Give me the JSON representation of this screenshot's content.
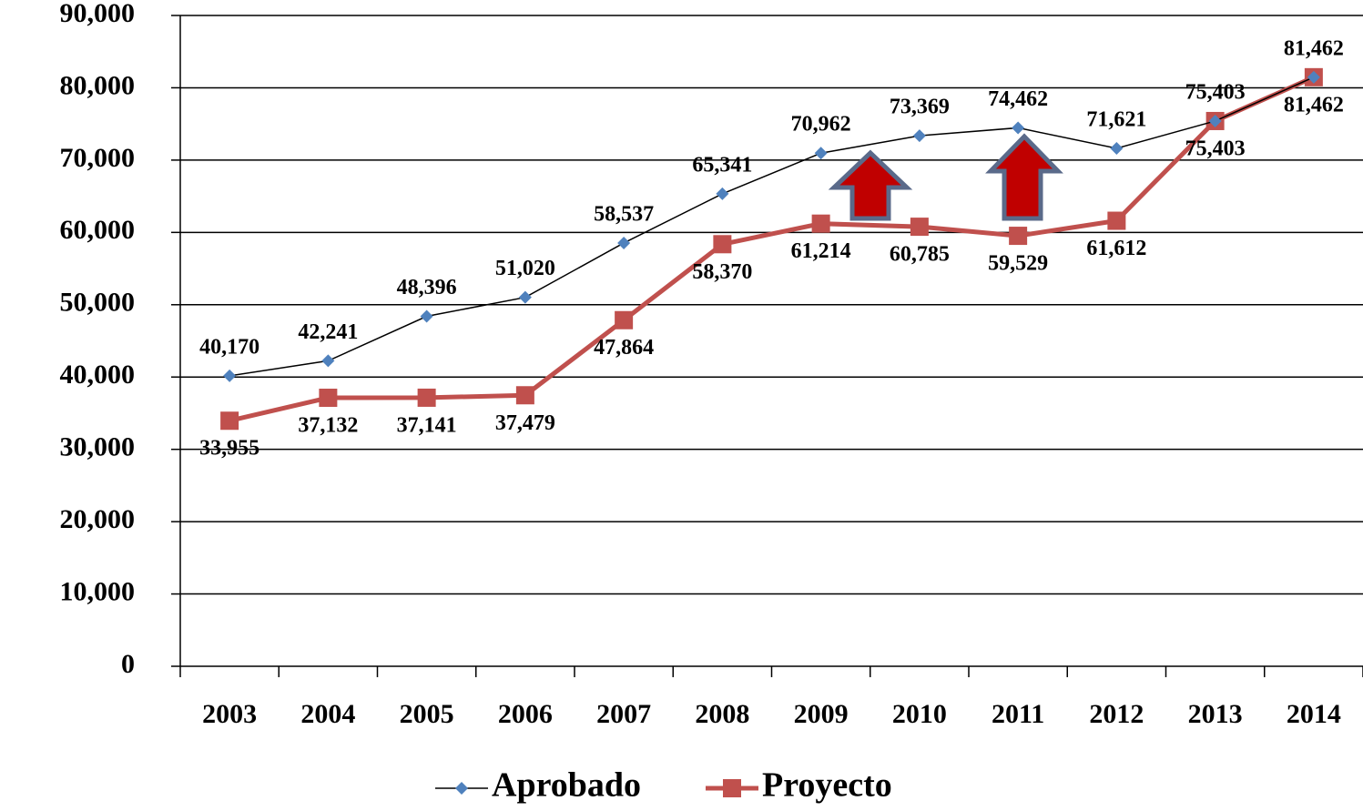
{
  "chart_data": {
    "type": "line",
    "categories": [
      "2003",
      "2004",
      "2005",
      "2006",
      "2007",
      "2008",
      "2009",
      "2010",
      "2011",
      "2012",
      "2013",
      "2014"
    ],
    "series": [
      {
        "name": "Aprobado",
        "color": "#4f81bd",
        "values": [
          40170,
          42241,
          48396,
          51020,
          58537,
          65341,
          70962,
          73369,
          74462,
          71621,
          75403,
          81462
        ],
        "value_labels": [
          "40,170",
          "42,241",
          "48,396",
          "51,020",
          "58,537",
          "65,341",
          "70,962",
          "73,369",
          "74,462",
          "71,621",
          "75,403",
          "81,462"
        ]
      },
      {
        "name": "Proyecto",
        "color": "#c0504d",
        "values": [
          33955,
          37132,
          37141,
          37479,
          47864,
          58370,
          61214,
          60785,
          59529,
          61612,
          75403,
          81462
        ],
        "value_labels": [
          "33,955",
          "37,132",
          "37,141",
          "37,479",
          "47,864",
          "58,370",
          "61,214",
          "60,785",
          "59,529",
          "61,612",
          "75,403",
          "81,462"
        ]
      }
    ],
    "ylim": [
      0,
      90000
    ],
    "yticks": [
      0,
      {
        "value": 10000,
        "label": "10,000"
      },
      {
        "value": 20000,
        "label": "20,000"
      },
      {
        "value": 30000,
        "label": "30,000"
      },
      {
        "value": 40000,
        "label": "40,000"
      },
      {
        "value": 50000,
        "label": "50,000"
      },
      {
        "value": 60000,
        "label": "60,000"
      },
      {
        "value": 70000,
        "label": "70,000"
      },
      {
        "value": 80000,
        "label": "80,000"
      },
      {
        "value": 90000,
        "label": "90,000"
      }
    ],
    "grid": true,
    "legend": "bottom"
  }
}
